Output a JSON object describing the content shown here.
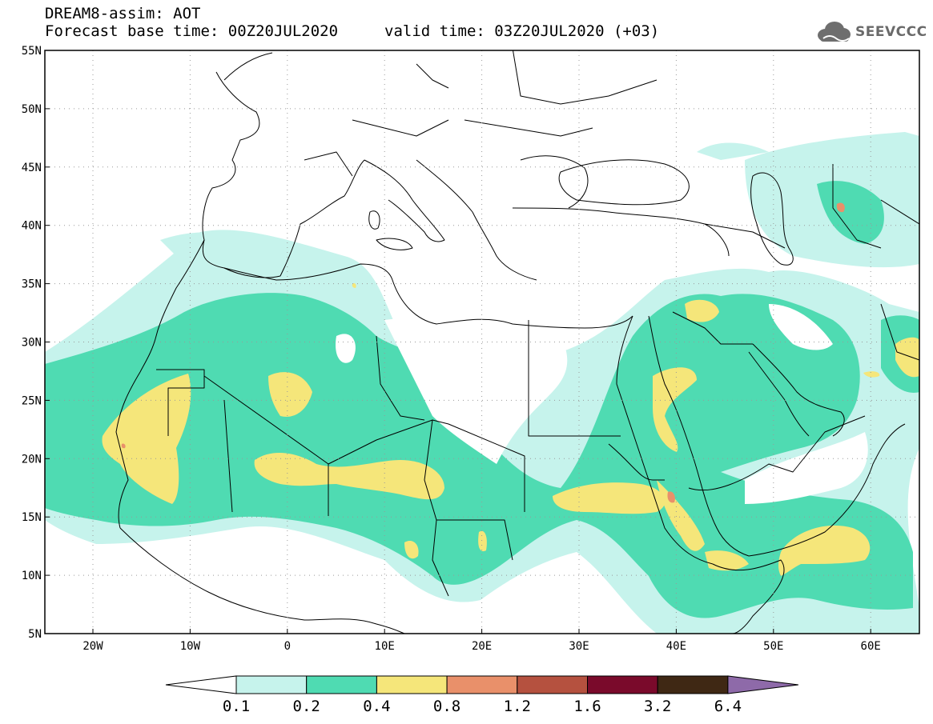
{
  "header": {
    "title": "DREAM8-assim: AOT",
    "base_time": "Forecast base time: 00Z20JUL2020",
    "valid_time": "valid time: 03Z20JUL2020 (+03)"
  },
  "logo": {
    "text": "SEEVCCC",
    "icon": "cloud-icon"
  },
  "map": {
    "lat_labels": [
      "55N",
      "50N",
      "45N",
      "40N",
      "35N",
      "30N",
      "25N",
      "20N",
      "15N",
      "10N",
      "5N"
    ],
    "lon_labels": [
      "20W",
      "10W",
      "0",
      "10E",
      "20E",
      "30E",
      "40E",
      "50E",
      "60E"
    ],
    "grid": "dotted"
  },
  "colorbar": {
    "ticks": [
      "0.1",
      "0.2",
      "0.4",
      "0.8",
      "1.2",
      "1.6",
      "3.2",
      "6.4"
    ],
    "under_color": "#ffffff",
    "over_color": "#8e6aa9",
    "colors": [
      "#c6f3ec",
      "#4fdbb2",
      "#f5e67a",
      "#e9906a",
      "#b5513f",
      "#7a0a2b",
      "#3f2814"
    ]
  }
}
